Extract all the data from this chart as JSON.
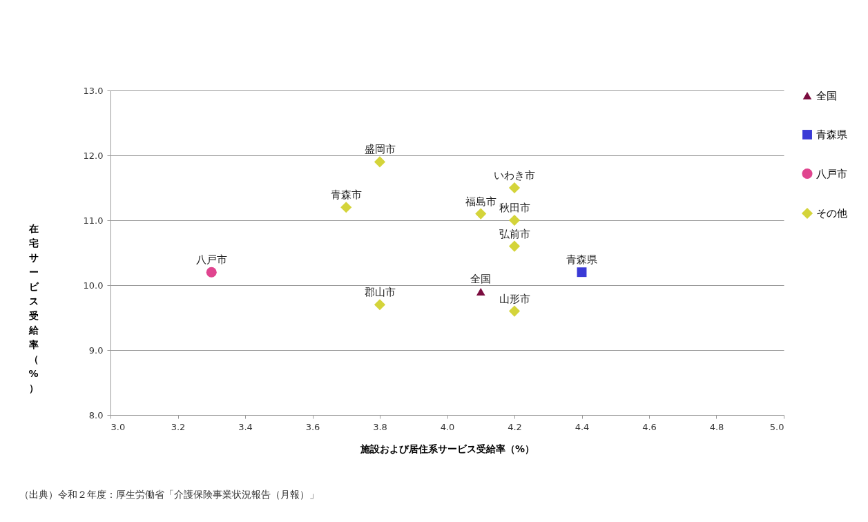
{
  "chart_data": {
    "type": "scatter",
    "xlabel": "施設および居住系サービス受給率（%）",
    "ylabel": "在宅サービス受給率（%）",
    "xlim": [
      3.0,
      5.0
    ],
    "xticks": [
      {
        "value": 3.0,
        "label": "3.0"
      },
      {
        "value": 3.2,
        "label": "3.2"
      },
      {
        "value": 3.4,
        "label": "3.4"
      },
      {
        "value": 3.6,
        "label": "3.6"
      },
      {
        "value": 3.8,
        "label": "3.8"
      },
      {
        "value": 4.0,
        "label": "4.0"
      },
      {
        "value": 4.2,
        "label": "4.2"
      },
      {
        "value": 4.4,
        "label": "4.4"
      },
      {
        "value": 4.6,
        "label": "4.6"
      },
      {
        "value": 4.8,
        "label": "4.8"
      },
      {
        "value": 5.0,
        "label": "5.0"
      }
    ],
    "ylim": [
      8.0,
      13.0
    ],
    "yticks": [
      {
        "value": 8.0,
        "label": "8.0"
      },
      {
        "value": 9.0,
        "label": "9.0"
      },
      {
        "value": 10.0,
        "label": "10.0"
      },
      {
        "value": 11.0,
        "label": "11.0"
      },
      {
        "value": 12.0,
        "label": "12.0"
      },
      {
        "value": 13.0,
        "label": "13.0"
      }
    ],
    "grid": "y",
    "legend": "right",
    "series": [
      {
        "name": "全国",
        "color": "#7b0c3f",
        "marker": "triangle",
        "x": [
          4.1
        ],
        "values": [
          9.9
        ]
      },
      {
        "name": "青森県",
        "color": "#3a3ad6",
        "marker": "square",
        "x": [
          4.4
        ],
        "values": [
          10.2
        ]
      },
      {
        "name": "八戸市",
        "color": "#e0458f",
        "marker": "circle",
        "x": [
          3.3
        ],
        "values": [
          10.2
        ]
      },
      {
        "name": "その他",
        "color": "#d4d43a",
        "marker": "diamond",
        "x": [
          3.8,
          3.7,
          4.1,
          4.2,
          4.2,
          4.2,
          3.8,
          4.2
        ],
        "values": [
          11.9,
          11.2,
          11.1,
          11.5,
          11.0,
          10.6,
          9.7,
          9.6
        ]
      }
    ],
    "annotations": [
      {
        "text": "全国",
        "x": 4.1,
        "y": 9.9
      },
      {
        "text": "青森県",
        "x": 4.4,
        "y": 10.2
      },
      {
        "text": "八戸市",
        "x": 3.3,
        "y": 10.2
      },
      {
        "text": "盛岡市",
        "x": 3.8,
        "y": 11.9
      },
      {
        "text": "青森市",
        "x": 3.7,
        "y": 11.2
      },
      {
        "text": "福島市",
        "x": 4.1,
        "y": 11.1
      },
      {
        "text": "いわき市",
        "x": 4.2,
        "y": 11.5
      },
      {
        "text": "秋田市",
        "x": 4.2,
        "y": 11.0
      },
      {
        "text": "弘前市",
        "x": 4.2,
        "y": 10.6
      },
      {
        "text": "郡山市",
        "x": 3.8,
        "y": 9.7
      },
      {
        "text": "山形市",
        "x": 4.2,
        "y": 9.6
      },
      "（出典）令和２年度：厚生労働省「介護保険事業状況報告（月報）」"
    ]
  }
}
